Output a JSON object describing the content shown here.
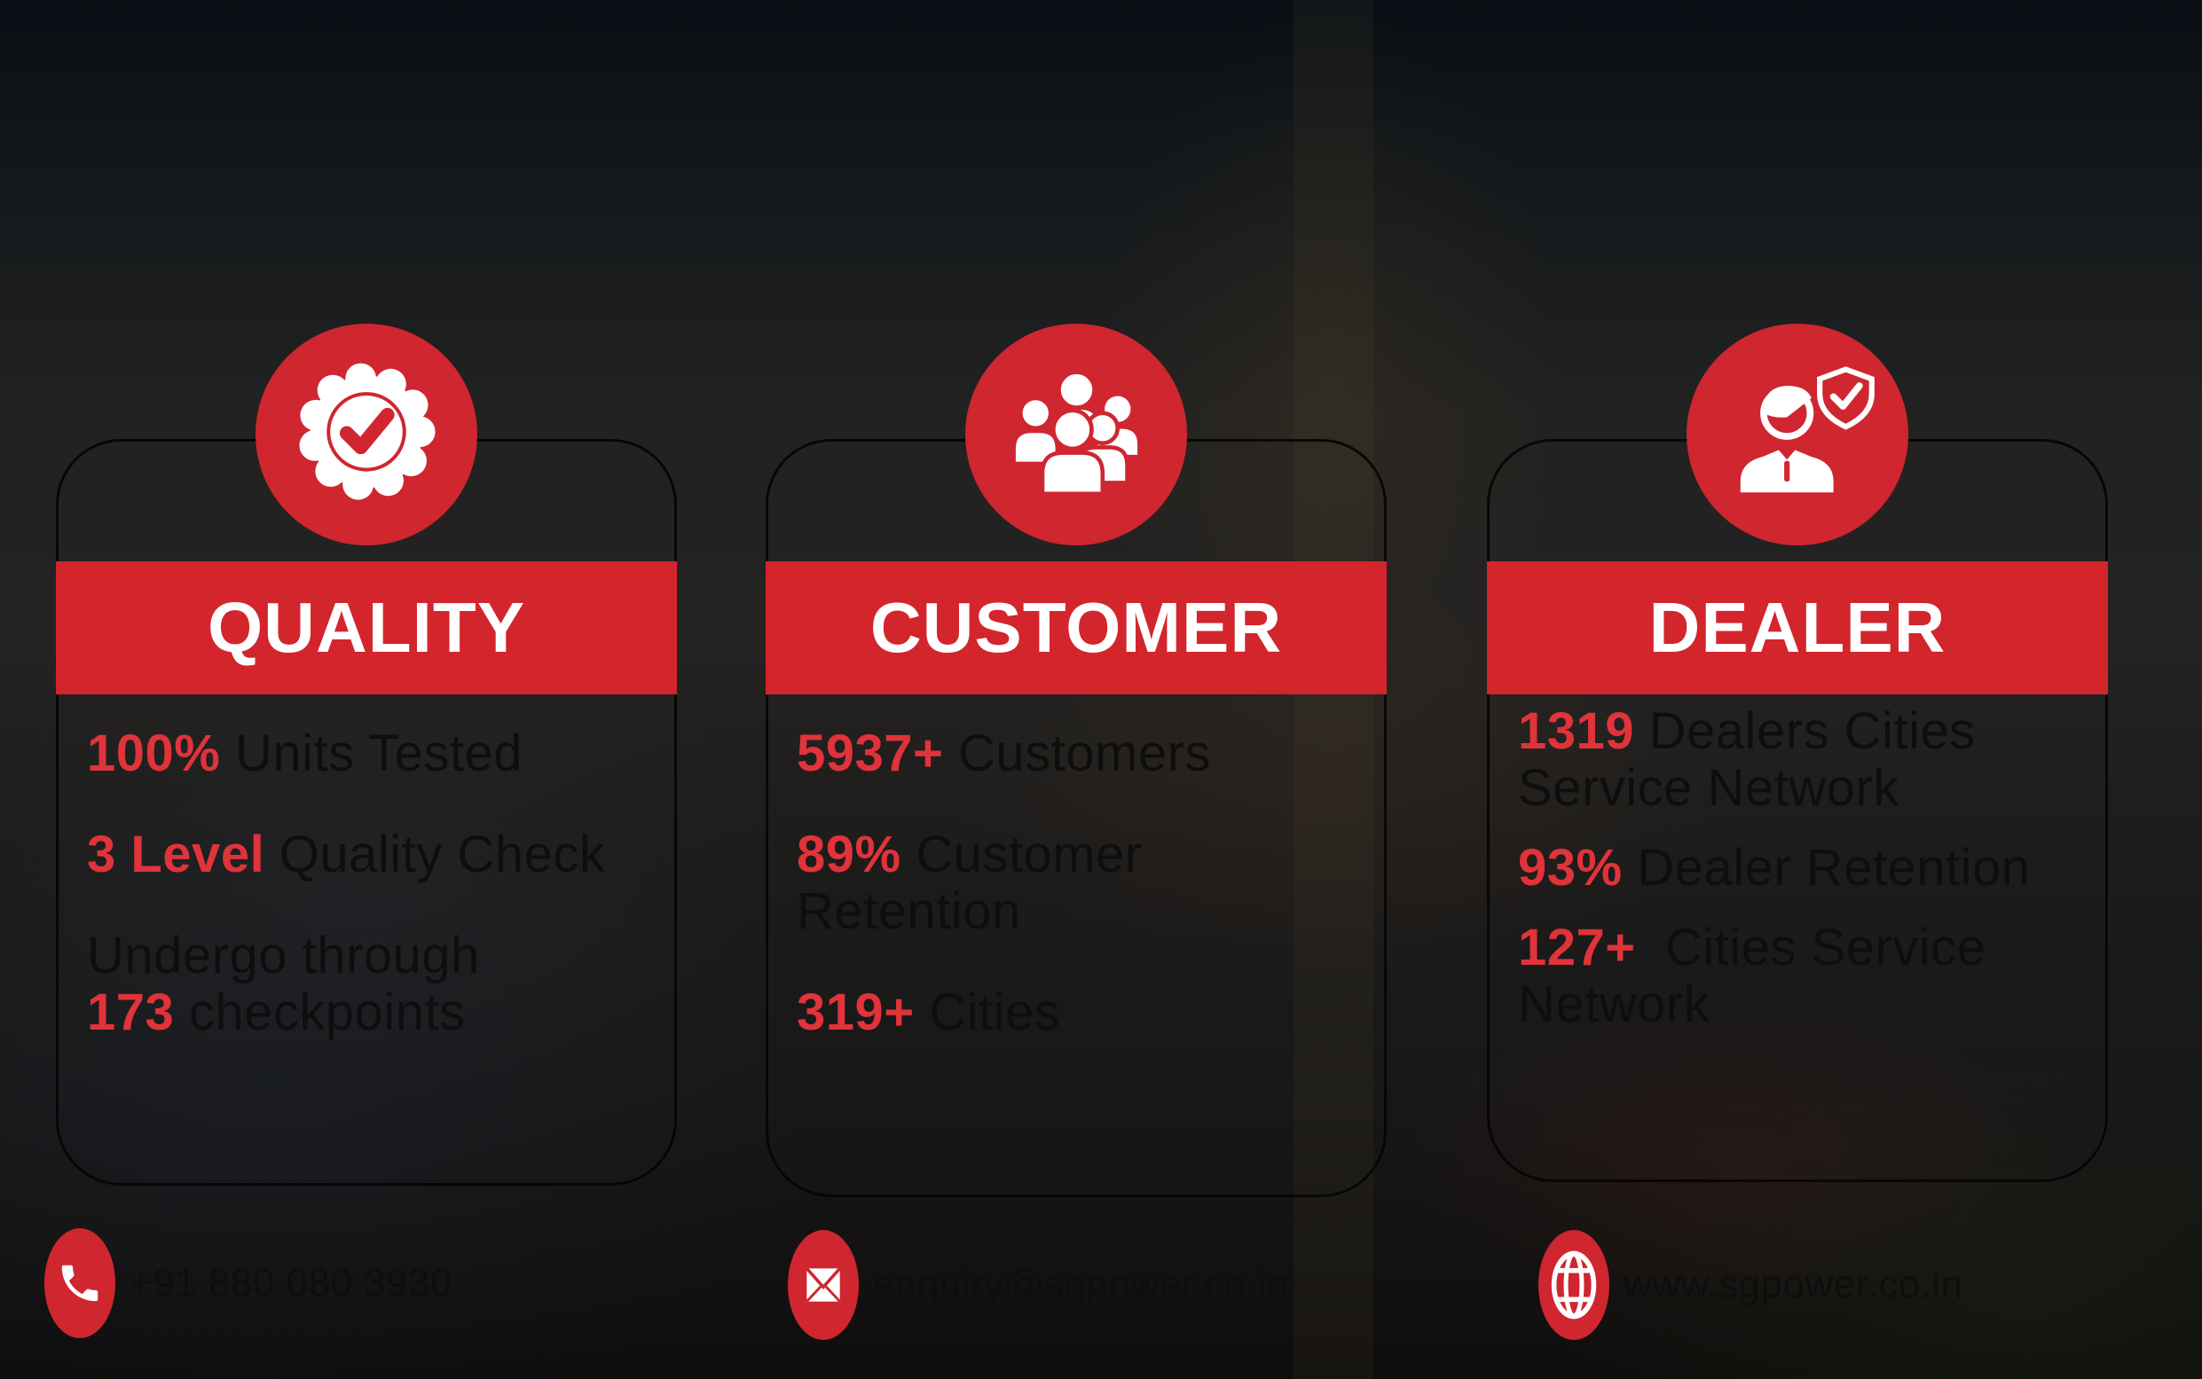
{
  "theme": {
    "banner_red": "#d3252c",
    "number_red": "#e0333a",
    "icon_red": "#cf2630",
    "title_color": "#ffffff",
    "stat_text_color": "#0e0e0e",
    "card_border_color": "#050505"
  },
  "cards": [
    {
      "id": "quality",
      "title": "QUALITY",
      "icon": "quality-badge-icon",
      "stats": [
        {
          "value": "100%",
          "post": " Units Tested",
          "para": true
        },
        {
          "value": "3 Level",
          "post": " Quality Check",
          "para": true
        },
        {
          "pre": "Undergo through",
          "para": true
        },
        {
          "value": "173",
          "post": " checkpoints",
          "para": false
        }
      ]
    },
    {
      "id": "customer",
      "title": "CUSTOMER",
      "icon": "customers-group-icon",
      "stats": [
        {
          "value": "5937+",
          "post": " Customers",
          "para": true
        },
        {
          "value": "89%",
          "post": " Customer",
          "para": true
        },
        {
          "pre": "Retention",
          "para": false
        },
        {
          "value": "319+",
          "post": " Cities",
          "para": true
        }
      ]
    },
    {
      "id": "dealer",
      "title": "DEALER",
      "icon": "dealer-shield-icon",
      "stats": [
        {
          "value": "1319",
          "post": " Dealers Cities",
          "para": true
        },
        {
          "pre": "Service Network",
          "para": false
        },
        {
          "value": "93%",
          "post": " Dealer Retention",
          "para": true
        },
        {
          "value": "127+",
          "post": "  Cities Service",
          "para": true
        },
        {
          "pre": "Network",
          "para": false
        }
      ]
    }
  ],
  "contacts": [
    {
      "icon": "phone-icon",
      "text": "+91 880 080 3930"
    },
    {
      "icon": "email-icon",
      "text": "enquiry@sgpower.co.in"
    },
    {
      "icon": "globe-icon",
      "text": "www.sgpower.co.in"
    }
  ]
}
